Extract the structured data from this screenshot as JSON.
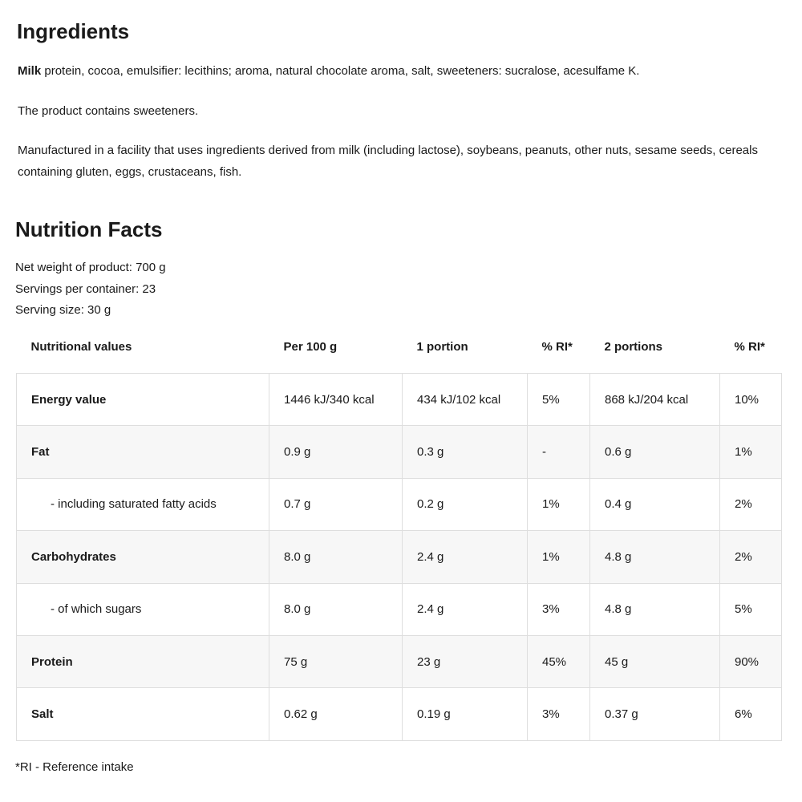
{
  "ingredients": {
    "title": "Ingredients",
    "text_bold": "Milk",
    "text_rest": " protein, cocoa, emulsifier: lecithins; aroma, natural chocolate aroma, salt, sweeteners: sucralose, acesulfame K.",
    "sweeteners_note": "The product contains sweeteners.",
    "allergen_note": "Manufactured in a facility that uses ingredients derived from milk (including lactose), soybeans, peanuts, other nuts, sesame seeds, cereals containing gluten, eggs, crustaceans, fish."
  },
  "nutrition": {
    "title": "Nutrition Facts",
    "net_weight": "Net weight of product: 700 g",
    "servings": "Servings per container: 23",
    "serving_size": "Serving size: 30 g",
    "headers": [
      "Nutritional values",
      "Per 100 g",
      "1 portion",
      "% RI*",
      "2 portions",
      "% RI*"
    ],
    "rows": [
      {
        "name": "Energy value",
        "bold": true,
        "values": [
          "1446 kJ/340 kcal",
          "434 kJ/102 kcal",
          "5%",
          "868 kJ/204 kcal",
          "10%"
        ]
      },
      {
        "name": "Fat",
        "bold": true,
        "values": [
          "0.9 g",
          "0.3 g",
          "-",
          "0.6 g",
          "1%"
        ]
      },
      {
        "name": "- including saturated fatty acids",
        "bold": false,
        "values": [
          "0.7 g",
          "0.2 g",
          "1%",
          "0.4 g",
          "2%"
        ]
      },
      {
        "name": "Carbohydrates",
        "bold": true,
        "values": [
          "8.0 g",
          "2.4 g",
          "1%",
          "4.8 g",
          "2%"
        ]
      },
      {
        "name": "- of which sugars",
        "bold": false,
        "values": [
          "8.0 g",
          "2.4 g",
          "3%",
          "4.8 g",
          "5%"
        ]
      },
      {
        "name": "Protein",
        "bold": true,
        "values": [
          "75 g",
          "23 g",
          "45%",
          "45 g",
          "90%"
        ]
      },
      {
        "name": "Salt",
        "bold": true,
        "values": [
          "0.62 g",
          "0.19 g",
          "3%",
          "0.37 g",
          "6%"
        ]
      }
    ],
    "footnote": "*RI - Reference intake"
  }
}
